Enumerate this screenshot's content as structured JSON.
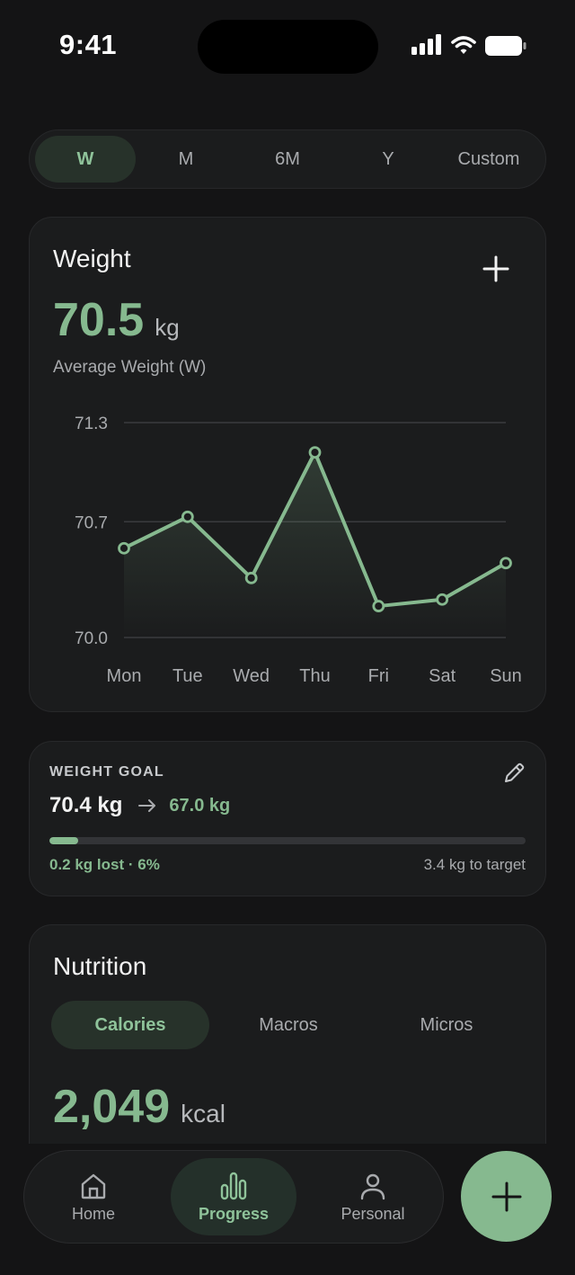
{
  "status": {
    "time": "9:41"
  },
  "periods": {
    "items": [
      "W",
      "M",
      "6M",
      "Y",
      "Custom"
    ],
    "selected": "W"
  },
  "weight": {
    "title": "Weight",
    "value": "70.5",
    "unit": "kg",
    "caption": "Average Weight (W)"
  },
  "chart_data": {
    "type": "area",
    "categories": [
      "Mon",
      "Tue",
      "Wed",
      "Thu",
      "Fri",
      "Sat",
      "Sun"
    ],
    "series": [
      {
        "values": [
          70.54,
          70.73,
          70.36,
          71.12,
          70.19,
          70.23,
          70.45
        ]
      }
    ],
    "yticks": [
      "71.3",
      "70.7",
      "70.0"
    ],
    "ylim": [
      70.0,
      71.3
    ],
    "grid": true,
    "colors": {
      "line": "#86b98f",
      "grid": "#3a3b3e"
    }
  },
  "goal": {
    "heading": "WEIGHT GOAL",
    "current": "70.4 kg",
    "target": "67.0 kg",
    "progress": 0.06,
    "lost_text": "0.2 kg lost · 6%",
    "remaining_text": "3.4 kg to target"
  },
  "nutrition": {
    "title": "Nutrition",
    "tabs": [
      "Calories",
      "Macros",
      "Micros"
    ],
    "selected": "Calories",
    "value": "2,049",
    "unit": "kcal"
  },
  "tabbar": {
    "items": [
      {
        "label": "Home",
        "icon": "home-icon"
      },
      {
        "label": "Progress",
        "icon": "bar-chart-icon"
      },
      {
        "label": "Personal",
        "icon": "person-icon"
      }
    ],
    "selected": "Progress"
  },
  "colors": {
    "accent": "#86b98f",
    "background": "#141415",
    "card": "#1b1c1d"
  }
}
